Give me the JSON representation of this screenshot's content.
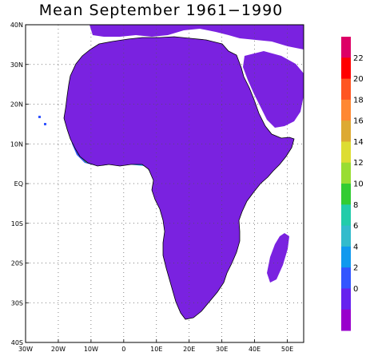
{
  "title": "Mean September 1961−1990",
  "lat_labels": [
    "40N",
    "30N",
    "20N",
    "10N",
    "EQ",
    "10S",
    "20S",
    "30S",
    "40S"
  ],
  "lon_labels": [
    "30W",
    "20W",
    "10W",
    "0",
    "10E",
    "20E",
    "30E",
    "40E",
    "50E"
  ],
  "colorbar": {
    "labels": [
      "22",
      "20",
      "18",
      "16",
      "14",
      "12",
      "10",
      "8",
      "6",
      "4",
      "2",
      "0"
    ],
    "colors": [
      "#dd0066",
      "#ff0000",
      "#ff5522",
      "#ff8833",
      "#ddaa33",
      "#dddd33",
      "#99dd33",
      "#33cc33",
      "#22ccaa",
      "#33bbcc",
      "#1199ee",
      "#3355ff",
      "#6622ee",
      "#9900cc"
    ]
  },
  "colors": {
    "ocean": "#ffffff",
    "land_dry": "#6b1fdd",
    "land_low": "#8a1fd8",
    "band_2": "#3355ff",
    "band_4": "#1199ee",
    "band_6": "#22ccaa",
    "band_8": "#33cc33",
    "band_12": "#dddd33"
  }
}
